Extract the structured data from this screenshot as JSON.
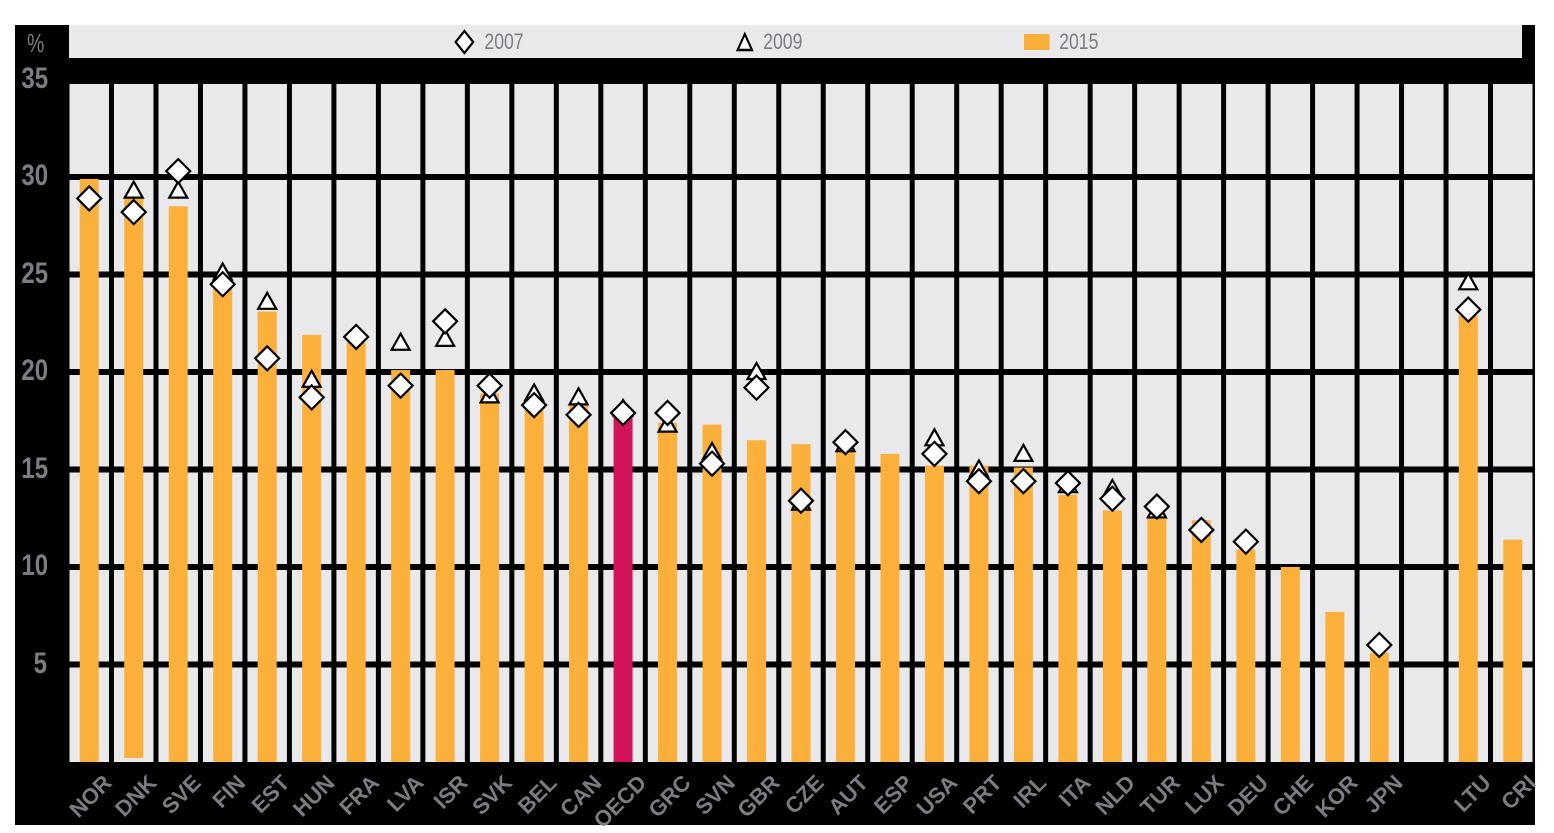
{
  "chart_data": {
    "type": "bar",
    "title": "",
    "xlabel": "",
    "ylabel": "%",
    "ylim": [
      0,
      35
    ],
    "yticks": [
      5,
      10,
      15,
      20,
      25,
      30,
      35
    ],
    "grid": true,
    "legend_position": "top",
    "categories": [
      "NOR",
      "DNK",
      "SVE",
      "FIN",
      "EST",
      "HUN",
      "FRA",
      "LVA",
      "ISR",
      "SVK",
      "BEL",
      "CAN",
      "OECD",
      "GRC",
      "SVN",
      "GBR",
      "CZE",
      "AUT",
      "ESP",
      "USA",
      "PRT",
      "IRL",
      "ITA",
      "NLD",
      "TUR",
      "LUX",
      "DEU",
      "CHE",
      "KOR",
      "JPN",
      "",
      "LTU",
      "CRI"
    ],
    "highlight_category": "OECD",
    "series": [
      {
        "name": "2015",
        "kind": "bar",
        "color": "#fbb03b",
        "values": [
          29.9,
          29.0,
          28.5,
          24.4,
          23.1,
          21.9,
          21.5,
          20.1,
          20.1,
          18.9,
          18.1,
          18.3,
          17.7,
          17.4,
          17.3,
          16.5,
          16.3,
          16.1,
          15.8,
          15.2,
          15.2,
          15.1,
          13.7,
          12.9,
          12.7,
          12.4,
          10.9,
          10.0,
          7.7,
          5.6,
          null,
          22.9,
          11.4
        ]
      },
      {
        "name": "2007",
        "kind": "marker",
        "marker": "diamond",
        "values": [
          28.9,
          28.2,
          30.3,
          24.5,
          20.7,
          18.7,
          21.8,
          19.3,
          22.6,
          19.3,
          18.3,
          17.8,
          17.9,
          17.9,
          15.3,
          19.2,
          13.4,
          16.4,
          null,
          15.8,
          14.4,
          14.4,
          14.3,
          13.5,
          13.1,
          11.9,
          11.3,
          null,
          null,
          6.0,
          null,
          23.2,
          null
        ]
      },
      {
        "name": "2009",
        "kind": "marker",
        "marker": "triangle",
        "values": [
          null,
          29.3,
          29.3,
          25.1,
          23.6,
          19.6,
          null,
          21.5,
          21.7,
          18.8,
          18.9,
          18.7,
          18.1,
          17.3,
          15.9,
          20.0,
          13.3,
          16.3,
          null,
          16.6,
          15.0,
          15.8,
          14.2,
          14.0,
          12.9,
          null,
          null,
          null,
          null,
          null,
          null,
          24.6,
          null
        ]
      }
    ]
  },
  "legend": {
    "items": [
      {
        "label": "2007",
        "icon": "diamond-icon"
      },
      {
        "label": "2009",
        "icon": "triangle-icon"
      },
      {
        "label": "2015",
        "icon": "bar-swatch-icon"
      }
    ]
  },
  "axis": {
    "y_unit": "%",
    "y_tick_labels": [
      "35",
      "30",
      "25",
      "20",
      "15",
      "10",
      "5"
    ]
  },
  "colors": {
    "bar": "#fbb03b",
    "highlight_bar": "#d4145a",
    "cell": "#e9e9eb",
    "frame": "#000000",
    "label": "#7b7d83"
  }
}
